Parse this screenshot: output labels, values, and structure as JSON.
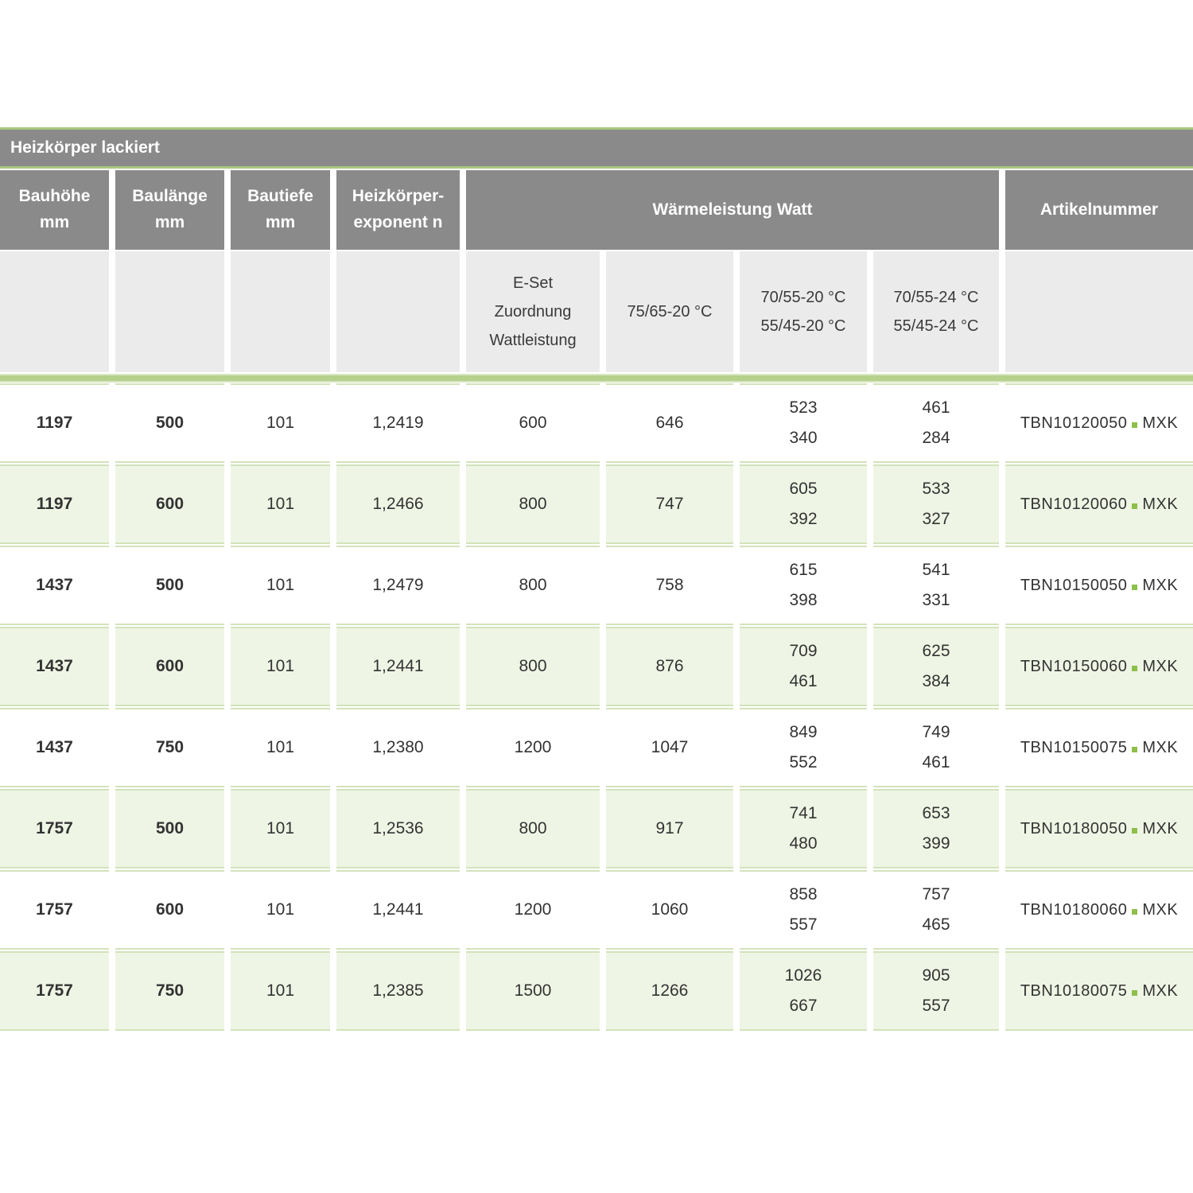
{
  "title": "Heizkörper lackiert",
  "headers": {
    "bauhoehe": "Bauhöhe\nmm",
    "baulaenge": "Baulänge\nmm",
    "bautiefe": "Bautiefe\nmm",
    "exponent": "Heizkörper-\nexponent n",
    "waermeleistung": "Wärmeleistung Watt",
    "artikelnummer": "Artikelnummer"
  },
  "subheaders": {
    "eset": "E-Set\nZuordnung\nWattleistung",
    "t7565": "75/65-20 °C",
    "t705520": "70/55-20 °C\n55/45-20 °C",
    "t705524": "70/55-24 °C\n55/45-24 °C"
  },
  "colors": {
    "header_gray": "#8a8a8a",
    "subheader_gray": "#ebebeb",
    "accent_green": "#a9c87d",
    "thick_line_green": "#b5d18c",
    "row_tint_green": "#eff5e4",
    "row_border_green": "#d2e3ba",
    "dot_green": "#8dbf4a"
  },
  "rows": [
    {
      "bauhoehe": "1197",
      "baulaenge": "500",
      "bautiefe": "101",
      "exponent": "1,2419",
      "eset": "600",
      "w7565": "646",
      "w705520": "523\n340",
      "w705524": "461\n284",
      "artikel_code": "TBN10120050",
      "artikel_suffix": "MXK"
    },
    {
      "bauhoehe": "1197",
      "baulaenge": "600",
      "bautiefe": "101",
      "exponent": "1,2466",
      "eset": "800",
      "w7565": "747",
      "w705520": "605\n392",
      "w705524": "533\n327",
      "artikel_code": "TBN10120060",
      "artikel_suffix": "MXK"
    },
    {
      "bauhoehe": "1437",
      "baulaenge": "500",
      "bautiefe": "101",
      "exponent": "1,2479",
      "eset": "800",
      "w7565": "758",
      "w705520": "615\n398",
      "w705524": "541\n331",
      "artikel_code": "TBN10150050",
      "artikel_suffix": "MXK"
    },
    {
      "bauhoehe": "1437",
      "baulaenge": "600",
      "bautiefe": "101",
      "exponent": "1,2441",
      "eset": "800",
      "w7565": "876",
      "w705520": "709\n461",
      "w705524": "625\n384",
      "artikel_code": "TBN10150060",
      "artikel_suffix": "MXK"
    },
    {
      "bauhoehe": "1437",
      "baulaenge": "750",
      "bautiefe": "101",
      "exponent": "1,2380",
      "eset": "1200",
      "w7565": "1047",
      "w705520": "849\n552",
      "w705524": "749\n461",
      "artikel_code": "TBN10150075",
      "artikel_suffix": "MXK"
    },
    {
      "bauhoehe": "1757",
      "baulaenge": "500",
      "bautiefe": "101",
      "exponent": "1,2536",
      "eset": "800",
      "w7565": "917",
      "w705520": "741\n480",
      "w705524": "653\n399",
      "artikel_code": "TBN10180050",
      "artikel_suffix": "MXK"
    },
    {
      "bauhoehe": "1757",
      "baulaenge": "600",
      "bautiefe": "101",
      "exponent": "1,2441",
      "eset": "1200",
      "w7565": "1060",
      "w705520": "858\n557",
      "w705524": "757\n465",
      "artikel_code": "TBN10180060",
      "artikel_suffix": "MXK"
    },
    {
      "bauhoehe": "1757",
      "baulaenge": "750",
      "bautiefe": "101",
      "exponent": "1,2385",
      "eset": "1500",
      "w7565": "1266",
      "w705520": "1026\n667",
      "w705524": "905\n557",
      "artikel_code": "TBN10180075",
      "artikel_suffix": "MXK"
    }
  ]
}
